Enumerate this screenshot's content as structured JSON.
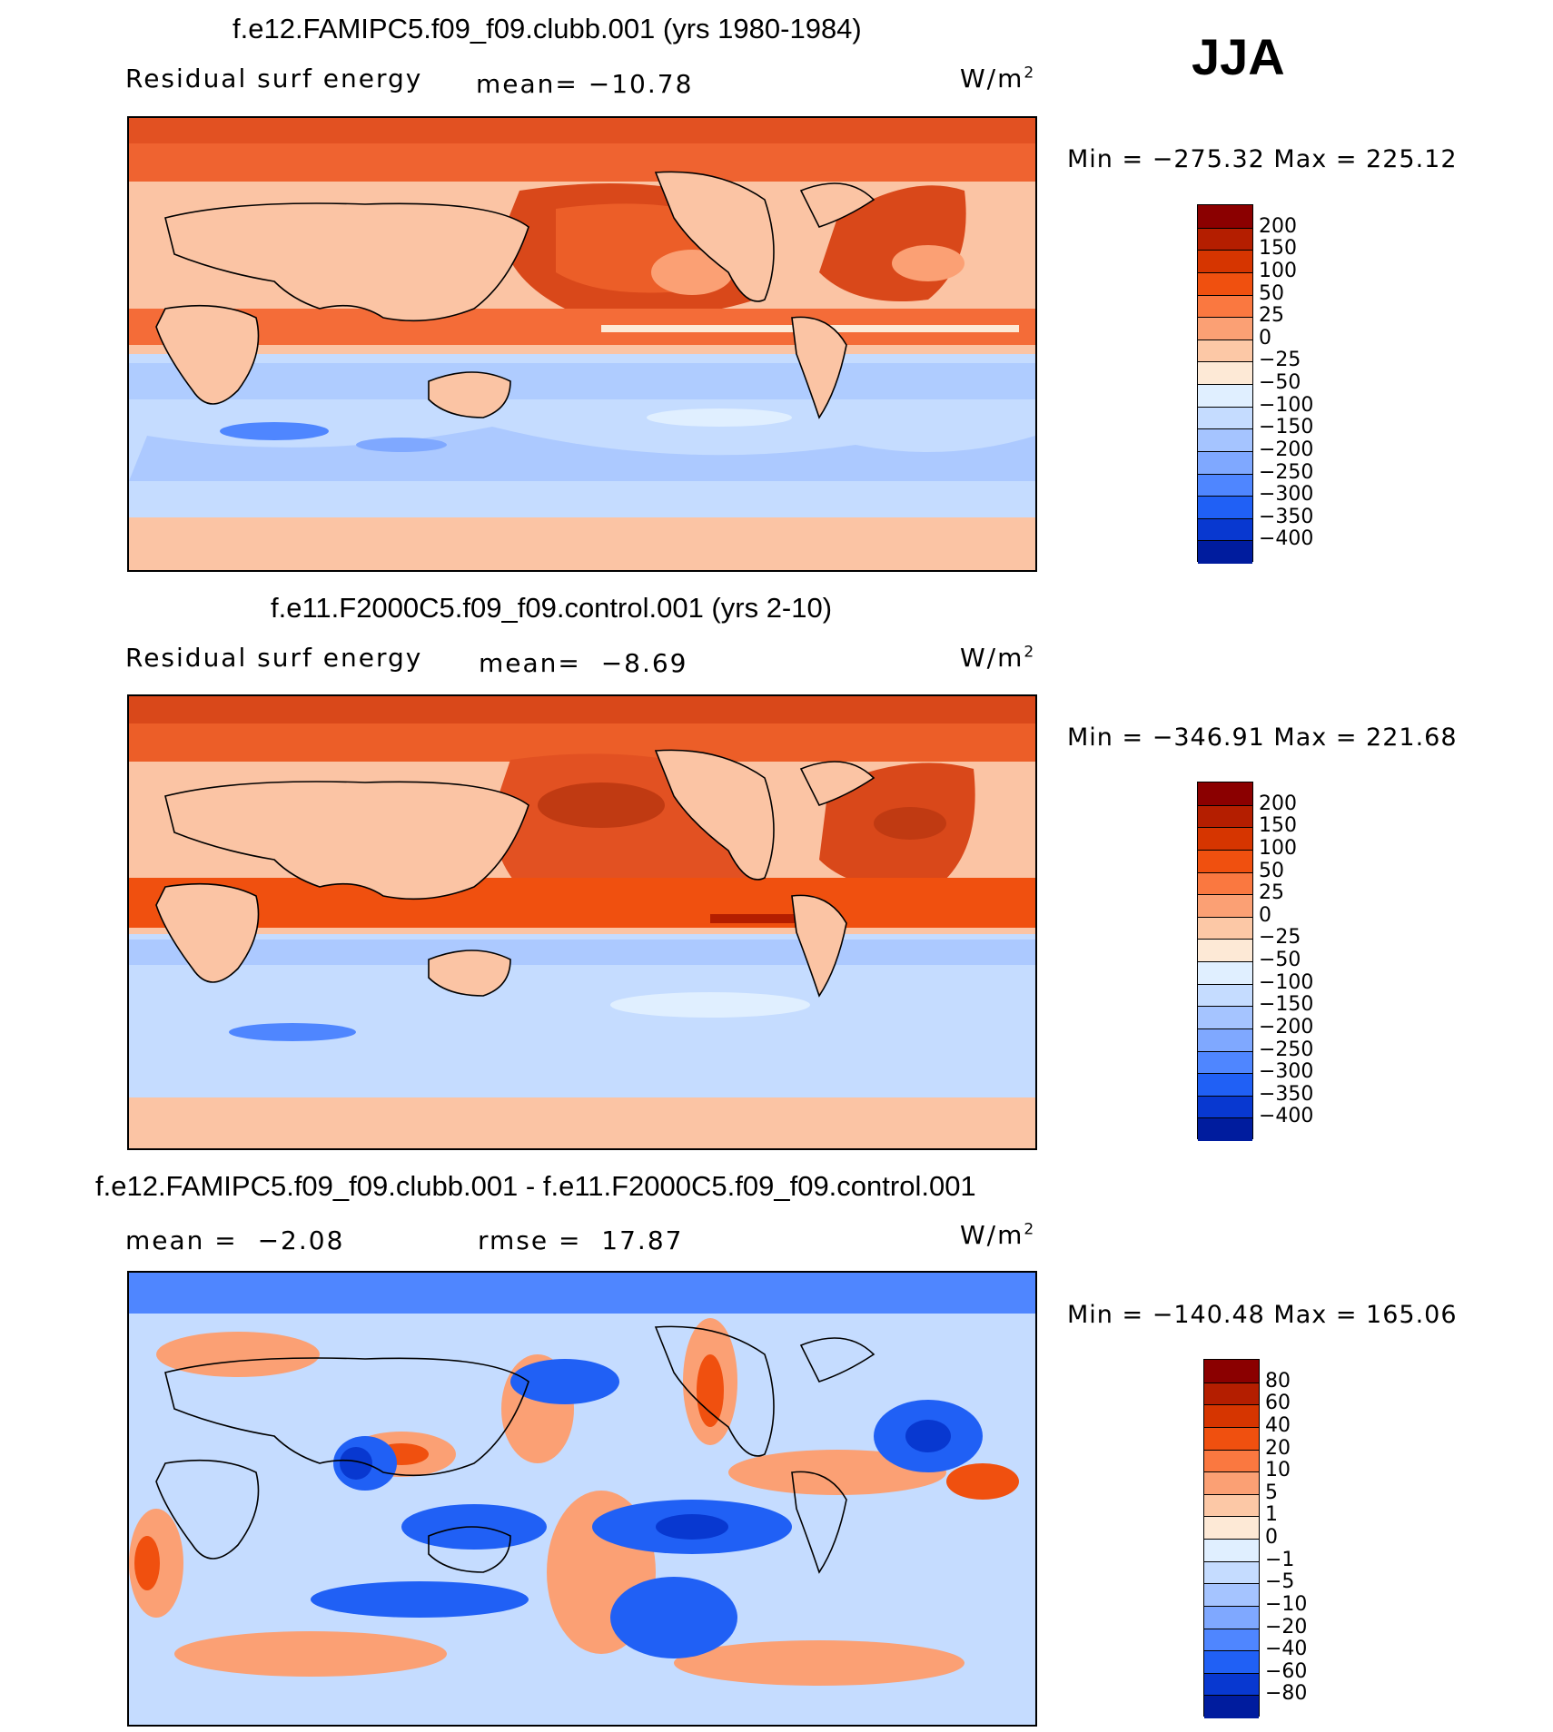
{
  "season": "JJA",
  "units_base": "W/m",
  "units_exp": "2",
  "panels": [
    {
      "title": "f.e12.FAMIPC5.f09_f09.clubb.001 (yrs 1980-1984)",
      "left_label": "Residual surf energy",
      "stat_label": "mean=",
      "stat_value": "−10.78",
      "min_label": "Min",
      "min_value": "−275.32",
      "max_label": "Max",
      "max_value": "225.12",
      "type": "field"
    },
    {
      "title": "f.e11.F2000C5.f09_f09.control.001 (yrs 2-10)",
      "left_label": "Residual surf energy",
      "stat_label": "mean=",
      "stat_value": "−8.69",
      "min_label": "Min",
      "min_value": "−346.91",
      "max_label": "Max",
      "max_value": "221.68",
      "type": "field"
    },
    {
      "title": "f.e12.FAMIPC5.f09_f09.clubb.001 - f.e11.F2000C5.f09_f09.control.001",
      "mean_label": "mean =",
      "mean_value": "−2.08",
      "rmse_label": "rmse =",
      "rmse_value": "17.87",
      "min_label": "Min",
      "min_value": "−140.48",
      "max_label": "Max",
      "max_value": "165.06",
      "type": "diff"
    }
  ],
  "colorbars": {
    "field": {
      "ticks": [
        "200",
        "150",
        "100",
        "50",
        "25",
        "0",
        "−25",
        "−50",
        "−100",
        "−150",
        "−200",
        "−250",
        "−300",
        "−350",
        "−400"
      ],
      "colors": [
        "#8b0000",
        "#b41e00",
        "#d63500",
        "#f0500f",
        "#fa7840",
        "#fba074",
        "#fcc8a6",
        "#fde9d6",
        "#e0efff",
        "#c5dcff",
        "#a5c4ff",
        "#7fa8ff",
        "#4f86ff",
        "#2060f5",
        "#0838d0",
        "#001c9e"
      ]
    },
    "diff": {
      "ticks": [
        "80",
        "60",
        "40",
        "20",
        "10",
        "5",
        "1",
        "0",
        "−1",
        "−5",
        "−10",
        "−20",
        "−40",
        "−60",
        "−80"
      ],
      "colors": [
        "#8b0000",
        "#b41e00",
        "#d63500",
        "#f0500f",
        "#fa7840",
        "#fba074",
        "#fcc8a6",
        "#fde9d6",
        "#e0efff",
        "#c5dcff",
        "#a5c4ff",
        "#7fa8ff",
        "#4f86ff",
        "#2060f5",
        "#0838d0",
        "#001c9e"
      ]
    }
  }
}
